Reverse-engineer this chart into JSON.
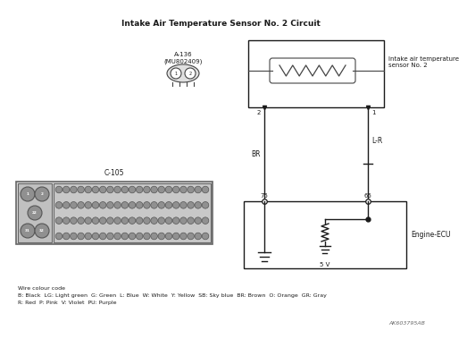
{
  "title": "Intake Air Temperature Sensor No. 2 Circuit",
  "wire_color_code_line1": "Wire colour code",
  "wire_color_code_line2": "B: Black  LG: Light green  G: Green  L: Blue  W: White  Y: Yellow  SB: Sky blue  BR: Brown  O: Orange  GR: Gray",
  "wire_color_code_line3": "R: Red  P: Pink  V: Violet  PU: Purple",
  "watermark": "AK603795AB",
  "connector_a136_label": "A-136\n(MU802409)",
  "sensor_label": "Intake air temperature\nsensor No. 2",
  "wire_br_label": "BR",
  "wire_lr_label": "L-R",
  "pin_75": "75",
  "pin_65": "65",
  "ecu_label": "Engine-ECU",
  "voltage_label": "5 V",
  "c105_label": "C-105",
  "sensor_pin2": "2",
  "sensor_pin1": "1"
}
